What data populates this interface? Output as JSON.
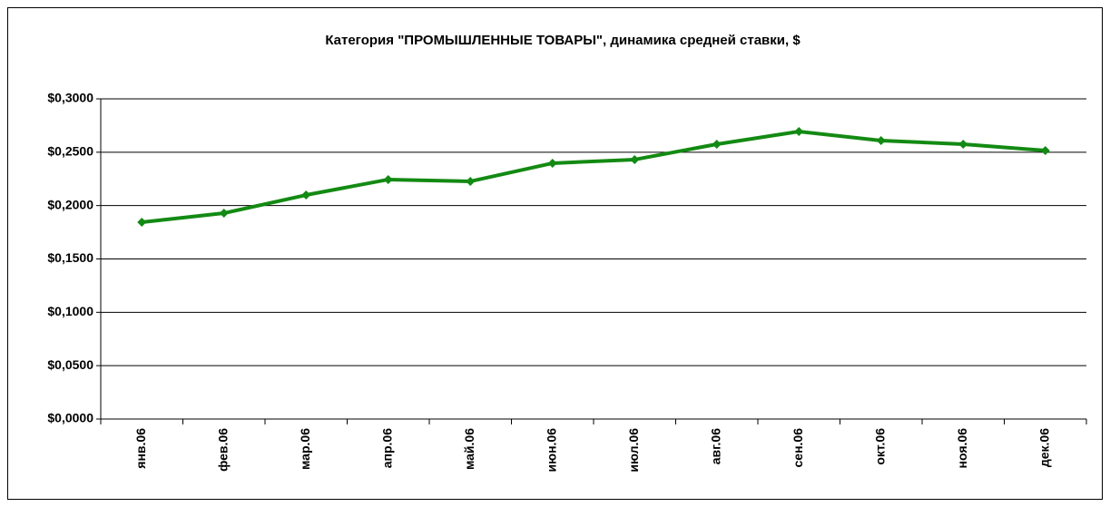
{
  "chart_data": {
    "type": "line",
    "title": "Категория \"ПРОМЫШЛЕННЫЕ ТОВАРЫ\", динамика средней ставки, $",
    "categories": [
      "янв.06",
      "фев.06",
      "мар.06",
      "апр.06",
      "май.06",
      "июн.06",
      "июл.06",
      "авг.06",
      "сен.06",
      "окт.06",
      "ноя.06",
      "дек.06"
    ],
    "series": [
      {
        "color": "#138a13",
        "values": [
          0.1844,
          0.1929,
          0.2099,
          0.2244,
          0.2227,
          0.2397,
          0.2431,
          0.2575,
          0.2694,
          0.2609,
          0.2575,
          0.2516
        ]
      }
    ],
    "ylim": [
      0,
      0.3
    ],
    "yticks": [
      {
        "value": 0,
        "label": "$0,0000"
      },
      {
        "value": 0.05,
        "label": "$0,0500"
      },
      {
        "value": 0.1,
        "label": "$0,1000"
      },
      {
        "value": 0.15,
        "label": "$0,1500"
      },
      {
        "value": 0.2,
        "label": "$0,2000"
      },
      {
        "value": 0.25,
        "label": "$0,2500"
      },
      {
        "value": 0.3,
        "label": "$0,3000"
      }
    ],
    "grid": true
  }
}
